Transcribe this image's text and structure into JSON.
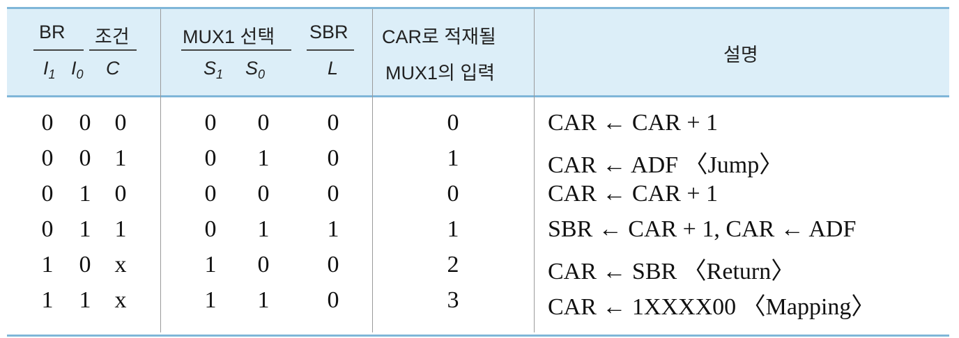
{
  "header": {
    "br_label": "BR",
    "cond_label": "조건",
    "i1": "I",
    "i1_sub": "1",
    "i0": "I",
    "i0_sub": "0",
    "c": "C",
    "mux_label": "MUX1 선택",
    "sbr_label": "SBR",
    "s1": "S",
    "s1_sub": "1",
    "s0": "S",
    "s0_sub": "0",
    "l": "L",
    "car_line1": "CAR로 적재될",
    "car_line2": "MUX1의 입력",
    "desc": "설명"
  },
  "rows": [
    {
      "i1": "0",
      "i0": "0",
      "c": "0",
      "s1": "0",
      "s0": "0",
      "l": "0",
      "mux": "0",
      "desc": "CAR ← CAR + 1"
    },
    {
      "i1": "0",
      "i0": "0",
      "c": "1",
      "s1": "0",
      "s0": "1",
      "l": "0",
      "mux": "1",
      "desc": "CAR ← ADF 〈Jump〉"
    },
    {
      "i1": "0",
      "i0": "1",
      "c": "0",
      "s1": "0",
      "s0": "0",
      "l": "0",
      "mux": "0",
      "desc": "CAR ← CAR + 1"
    },
    {
      "i1": "0",
      "i0": "1",
      "c": "1",
      "s1": "0",
      "s0": "1",
      "l": "1",
      "mux": "1",
      "desc": "SBR ← CAR + 1, CAR ← ADF"
    },
    {
      "i1": "1",
      "i0": "0",
      "c": "x",
      "s1": "1",
      "s0": "0",
      "l": "0",
      "mux": "2",
      "desc": "CAR ← SBR 〈Return〉"
    },
    {
      "i1": "1",
      "i0": "1",
      "c": "x",
      "s1": "1",
      "s0": "1",
      "l": "0",
      "mux": "3",
      "desc": "CAR ← 1XXXX00 〈Mapping〉"
    }
  ]
}
